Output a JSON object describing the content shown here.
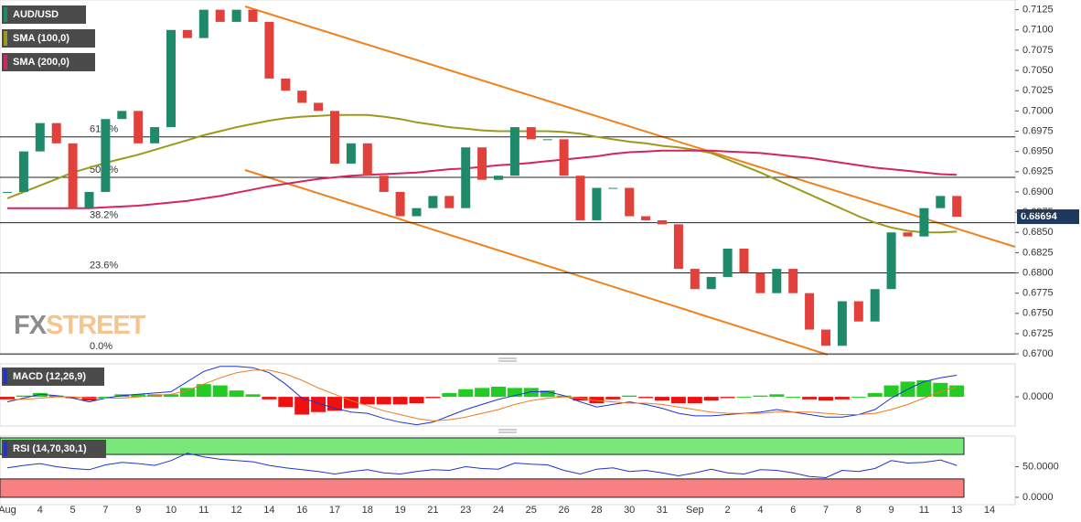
{
  "chart_data": [
    {
      "type": "candlestick",
      "categories": [
        "Aug",
        null,
        "4",
        null,
        "5",
        null,
        "7",
        null,
        "9",
        null,
        "10",
        null,
        "11",
        null,
        "12",
        null,
        "14",
        null,
        "16",
        null,
        "17",
        null,
        "18",
        null,
        "19",
        null,
        "21",
        null,
        "23",
        null,
        "24",
        null,
        "25",
        null,
        "26",
        null,
        "28",
        null,
        "30",
        null,
        "31",
        null,
        "Sep",
        null,
        "2",
        null,
        "4",
        null,
        "6",
        null,
        "7",
        null,
        "8",
        null,
        "9",
        null,
        "11",
        null,
        "13",
        null,
        "14"
      ],
      "series": [
        {
          "name": "AUD/USD",
          "up_color": "#1f8a6a",
          "down_color": "#e2403a",
          "values": [
            0.69,
            0.695,
            0.6985,
            0.696,
            0.688,
            0.69,
            0.699,
            0.7,
            0.696,
            0.698,
            0.71,
            0.709,
            0.7125,
            0.711,
            0.7125,
            0.711,
            0.704,
            0.7025,
            0.701,
            0.7,
            0.6935,
            0.696,
            0.692,
            0.69,
            0.687,
            0.688,
            0.6895,
            0.688,
            0.6955,
            0.6915,
            0.692,
            0.698,
            0.6965,
            0.6965,
            0.692,
            0.6865,
            0.6905,
            0.6905,
            0.687,
            0.6865,
            0.686,
            0.6805,
            0.678,
            0.6795,
            0.683,
            0.68,
            0.6775,
            0.6805,
            0.6775,
            0.673,
            0.671,
            0.6765,
            0.674,
            0.678,
            0.685,
            0.6845,
            0.688,
            0.6895,
            0.68694,
            null,
            null
          ]
        },
        {
          "name": "SMA (100,0)",
          "color": "#9c9a1c",
          "values": [
            0.6892,
            0.69,
            0.6908,
            0.6916,
            0.6924,
            0.693,
            0.6936,
            0.6941,
            0.6946,
            0.6952,
            0.6958,
            0.6964,
            0.697,
            0.6975,
            0.698,
            0.6984,
            0.6988,
            0.6991,
            0.6993,
            0.6994,
            0.6995,
            0.6995,
            0.6995,
            0.6993,
            0.699,
            0.6986,
            0.6983,
            0.698,
            0.6978,
            0.6976,
            0.6975,
            0.6975,
            0.6975,
            0.6975,
            0.6974,
            0.6972,
            0.6968,
            0.6965,
            0.6962,
            0.696,
            0.6957,
            0.6955,
            0.6952,
            0.6948,
            0.694,
            0.6932,
            0.6924,
            0.6915,
            0.6906,
            0.6897,
            0.6888,
            0.6879,
            0.687,
            0.6862,
            0.6856,
            0.6852,
            0.685,
            0.685,
            0.6851,
            null,
            null
          ]
        },
        {
          "name": "SMA (200,0)",
          "color": "#d6245e",
          "values": [
            0.688,
            0.688,
            0.688,
            0.688,
            0.688,
            0.688,
            0.6881,
            0.6882,
            0.6883,
            0.6885,
            0.6887,
            0.6889,
            0.6892,
            0.6895,
            0.6899,
            0.6903,
            0.6907,
            0.691,
            0.6913,
            0.6916,
            0.6918,
            0.692,
            0.6921,
            0.6922,
            0.6923,
            0.6924,
            0.6926,
            0.6928,
            0.6929,
            0.6931,
            0.6933,
            0.6934,
            0.6936,
            0.6938,
            0.694,
            0.6942,
            0.6944,
            0.6947,
            0.6949,
            0.695,
            0.6951,
            0.6951,
            0.6951,
            0.6951,
            0.695,
            0.6949,
            0.6948,
            0.6946,
            0.6944,
            0.6942,
            0.6939,
            0.6936,
            0.6933,
            0.693,
            0.6928,
            0.6926,
            0.6924,
            0.6922,
            0.6921,
            null,
            null
          ]
        }
      ],
      "last_price": 0.68694,
      "ylim": [
        0.6699,
        0.7137
      ],
      "yticks": [
        {
          "value": 0.7125,
          "label": "0.7125"
        },
        {
          "value": 0.71,
          "label": "0.7100"
        },
        {
          "value": 0.7075,
          "label": "0.7075"
        },
        {
          "value": 0.705,
          "label": "0.7050"
        },
        {
          "value": 0.7025,
          "label": "0.7025"
        },
        {
          "value": 0.7,
          "label": "0.7000"
        },
        {
          "value": 0.6975,
          "label": "0.6975"
        },
        {
          "value": 0.695,
          "label": "0.6950"
        },
        {
          "value": 0.6925,
          "label": "0.6925"
        },
        {
          "value": 0.69,
          "label": "0.6900"
        },
        {
          "value": 0.6875,
          "label": "0.6875"
        },
        {
          "value": 0.685,
          "label": "0.6850"
        },
        {
          "value": 0.6825,
          "label": "0.6825"
        },
        {
          "value": 0.68,
          "label": "0.6800"
        },
        {
          "value": 0.6775,
          "label": "0.6775"
        },
        {
          "value": 0.675,
          "label": "0.6750"
        },
        {
          "value": 0.6725,
          "label": "0.6725"
        },
        {
          "value": 0.67,
          "label": "0.6700"
        }
      ],
      "fib_levels": [
        {
          "value": 0.6968,
          "label": "61.8%"
        },
        {
          "value": 0.6918,
          "label": "50.0%"
        },
        {
          "value": 0.6862,
          "label": "38.2%"
        },
        {
          "value": 0.68,
          "label": "23.6%"
        },
        {
          "value": 0.67,
          "label": "0.0%"
        }
      ],
      "watermark": {
        "left": "FX",
        "right": "STREET"
      }
    },
    {
      "type": "bar",
      "title": "MACD (12,26,9)",
      "series": [
        {
          "color": "#22cc22",
          "negative_color": "#ee1111",
          "values": [
            -0.0002,
            0.0001,
            0.0003,
            0.0001,
            -0.0001,
            -0.0003,
            0.0,
            0.0002,
            0.0002,
            0.0002,
            0.0002,
            0.0007,
            0.001,
            0.0009,
            0.0005,
            0.0002,
            -0.0002,
            -0.0008,
            -0.0014,
            -0.0012,
            -0.0011,
            -0.0009,
            -0.0006,
            -0.0006,
            -0.0006,
            -0.0005,
            -0.0001,
            0.0003,
            0.0006,
            0.0007,
            0.0008,
            0.0007,
            0.0007,
            0.0005,
            0.0001,
            -0.0003,
            -0.0005,
            -0.0002,
            0.0001,
            -0.0001,
            -0.0003,
            -0.0005,
            -0.0005,
            -0.0003,
            -0.0001,
            0.0,
            0.0001,
            0.0002,
            0.0,
            -0.0002,
            -0.0003,
            -0.0002,
            0.0,
            0.0003,
            0.0009,
            0.0012,
            0.0013,
            0.0011,
            0.0009,
            null,
            null
          ]
        },
        {
          "type": "line",
          "color": "#2233cc",
          "values": [
            -0.0004,
            -0.0001,
            0.0002,
            0.0001,
            -0.0001,
            -0.0004,
            -0.0001,
            0.0001,
            0.0002,
            0.0003,
            0.0004,
            0.0012,
            0.002,
            0.0024,
            0.0024,
            0.0023,
            0.0019,
            0.001,
            -0.0001,
            -0.0005,
            -0.0009,
            -0.0012,
            -0.0013,
            -0.0017,
            -0.002,
            -0.0022,
            -0.002,
            -0.0015,
            -0.001,
            -0.0006,
            -0.0002,
            0.0001,
            0.0004,
            0.0004,
            0.0001,
            -0.0004,
            -0.0008,
            -0.0006,
            -0.0004,
            -0.0006,
            -0.0009,
            -0.0013,
            -0.0015,
            -0.0015,
            -0.0014,
            -0.0013,
            -0.0012,
            -0.001,
            -0.0012,
            -0.0014,
            -0.0016,
            -0.0016,
            -0.0014,
            -0.001,
            -0.0001,
            0.0006,
            0.0012,
            0.0015,
            0.0017,
            null,
            null
          ]
        },
        {
          "type": "line",
          "color": "#f07a1e",
          "values": [
            -0.0002,
            -0.0002,
            -0.0001,
            0.0,
            0.0,
            -0.0001,
            -0.0001,
            -0.0001,
            0.0,
            0.0001,
            0.0002,
            0.0005,
            0.001,
            0.0015,
            0.0019,
            0.0021,
            0.0021,
            0.0018,
            0.0013,
            0.0007,
            0.0002,
            -0.0003,
            -0.0007,
            -0.0011,
            -0.0014,
            -0.0017,
            -0.0019,
            -0.0018,
            -0.0016,
            -0.0013,
            -0.001,
            -0.0006,
            -0.0003,
            -0.0001,
            0.0,
            -0.0001,
            -0.0003,
            -0.0004,
            -0.0005,
            -0.0005,
            -0.0006,
            -0.0008,
            -0.001,
            -0.0012,
            -0.0013,
            -0.0013,
            -0.0013,
            -0.0012,
            -0.0012,
            -0.0012,
            -0.0013,
            -0.0014,
            -0.0014,
            -0.0013,
            -0.001,
            -0.0006,
            -0.0001,
            0.0004,
            0.0008,
            null,
            null
          ]
        }
      ],
      "ylim": [
        -0.0023,
        0.0026
      ],
      "yticks": [
        {
          "value": 0,
          "label": "0.0000"
        }
      ]
    },
    {
      "type": "line",
      "title": "RSI (14,70,30,1)",
      "series": [
        {
          "color": "#2233cc",
          "values": [
            48,
            52,
            55,
            50,
            47,
            45,
            53,
            57,
            55,
            52,
            60,
            72,
            66,
            62,
            60,
            58,
            52,
            48,
            45,
            42,
            38,
            42,
            45,
            40,
            38,
            42,
            45,
            44,
            50,
            47,
            46,
            56,
            54,
            53,
            44,
            38,
            46,
            48,
            42,
            44,
            40,
            35,
            40,
            46,
            40,
            38,
            45,
            44,
            40,
            34,
            32,
            44,
            42,
            47,
            60,
            56,
            57,
            61,
            52,
            null,
            null
          ]
        }
      ],
      "upper_band": 70,
      "lower_band": 30,
      "ylim": [
        -12,
        100
      ],
      "yticks": [
        {
          "value": 50,
          "label": "50.0000"
        },
        {
          "value": 0,
          "label": "0.0000"
        }
      ]
    }
  ]
}
